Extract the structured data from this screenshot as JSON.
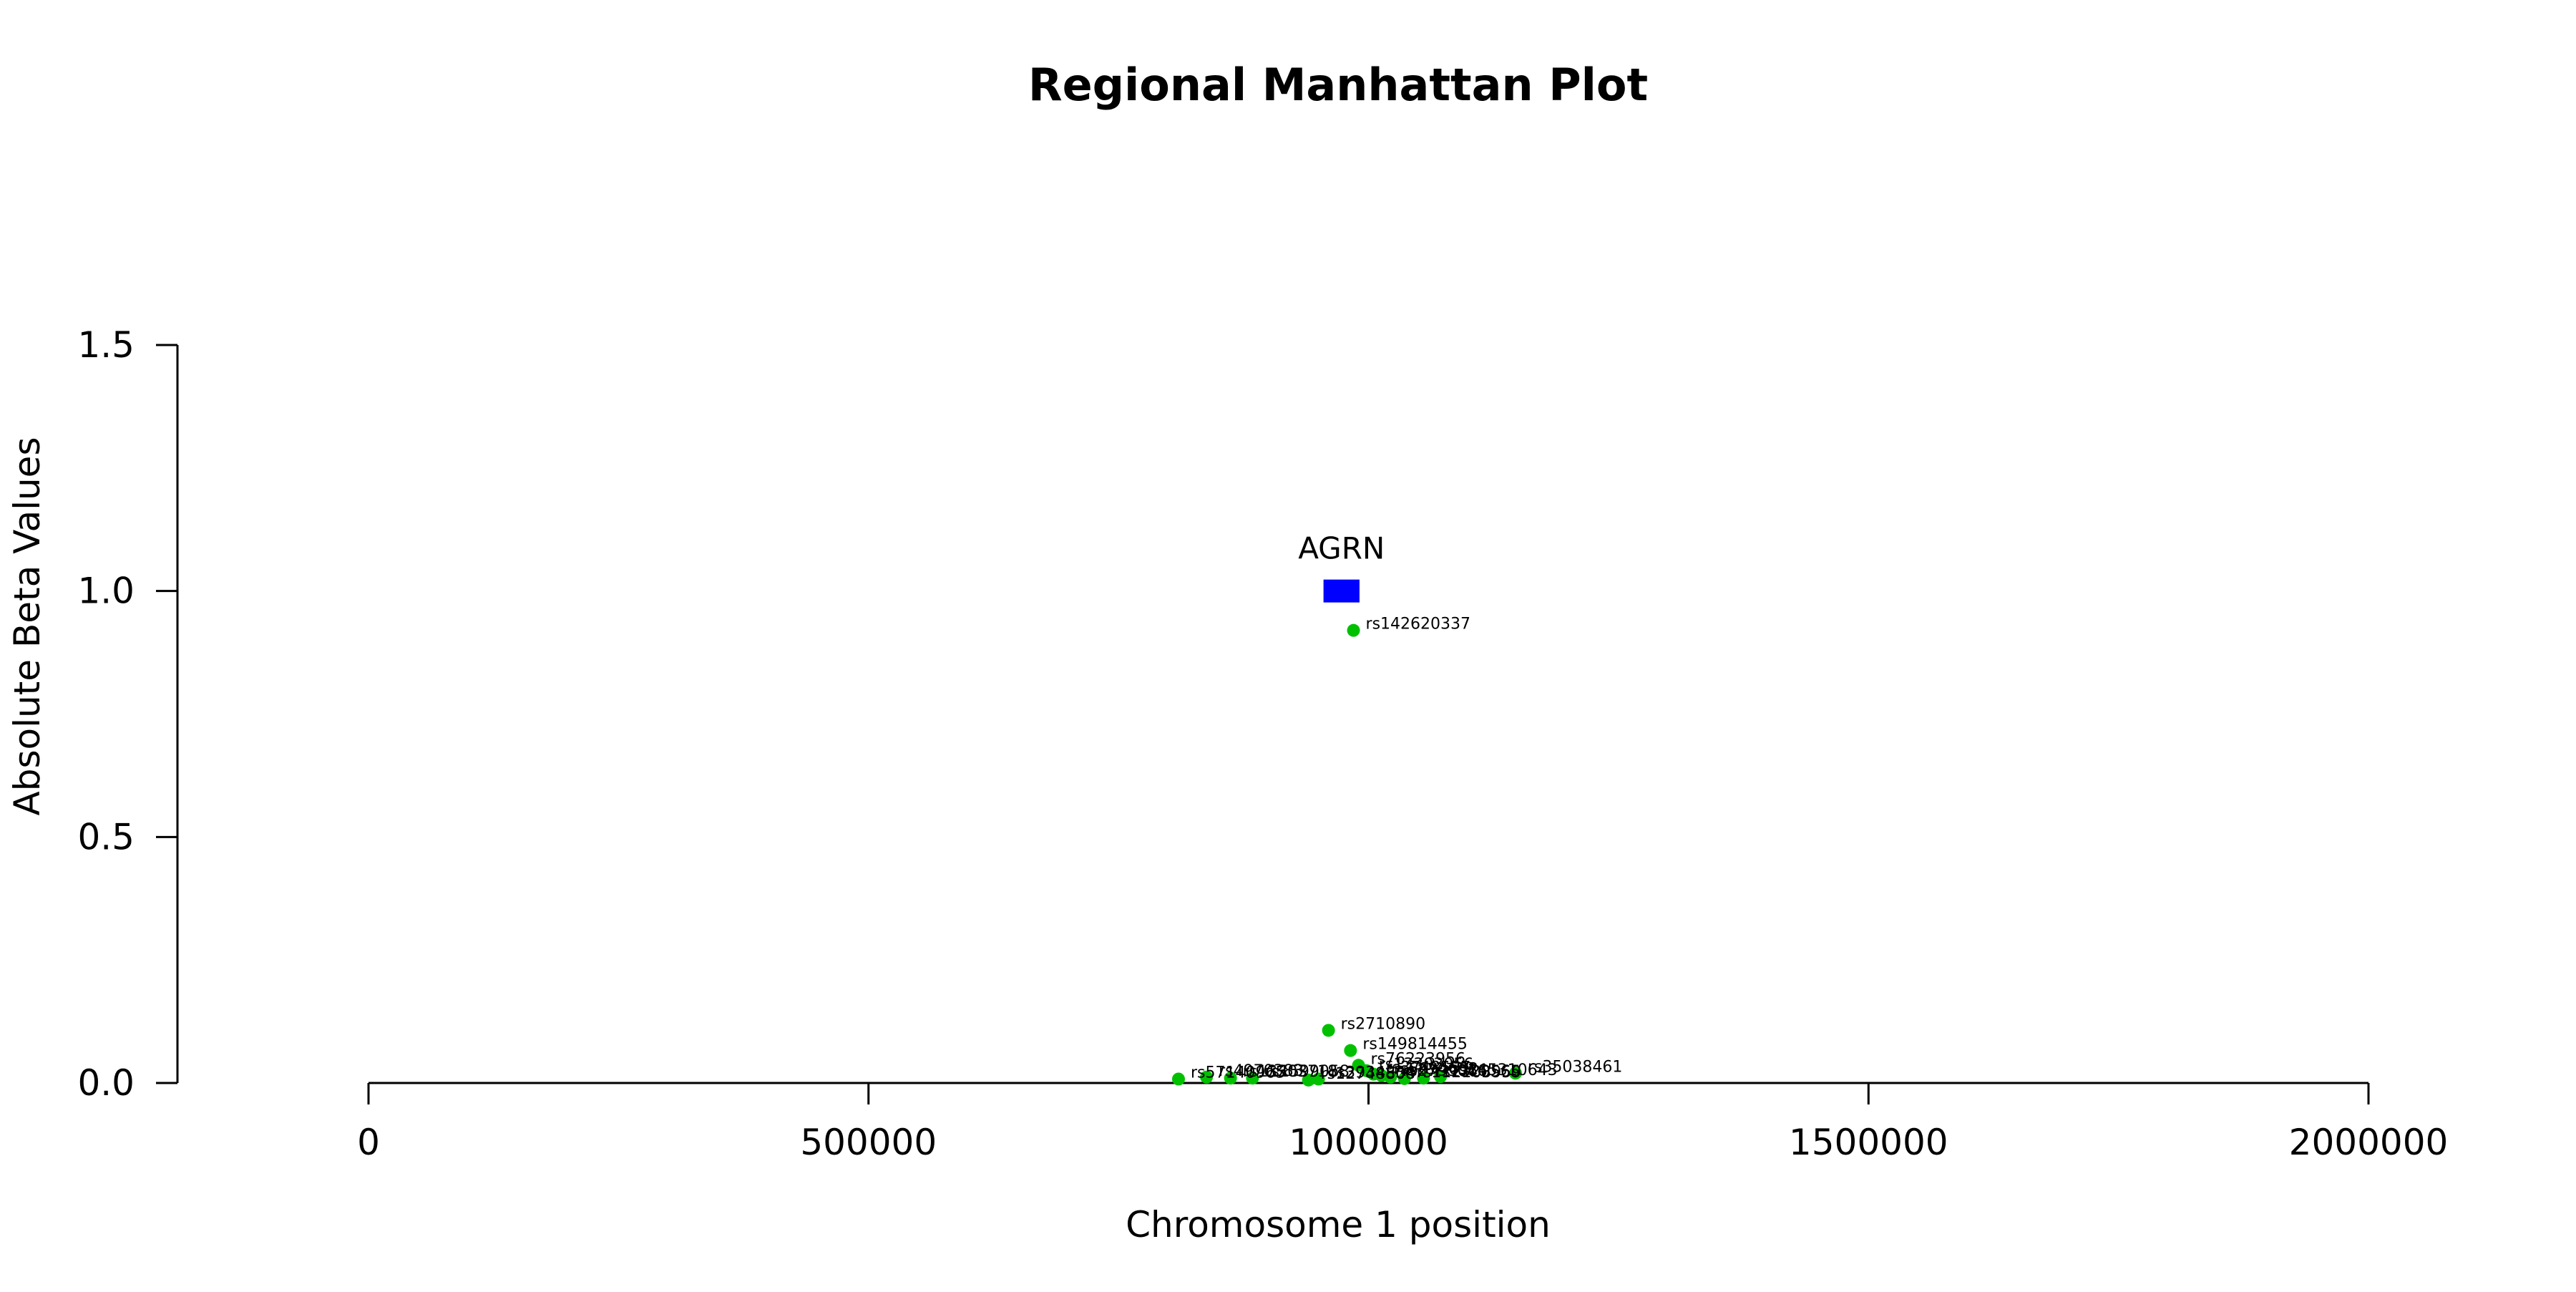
{
  "chart_data": {
    "type": "scatter",
    "title": "Regional Manhattan Plot",
    "xlabel": "Chromosome 1 position",
    "ylabel": "Absolute Beta Values",
    "xlim": [
      -190000,
      2000000
    ],
    "ylim": [
      0,
      1.5
    ],
    "x_ticks": [
      0,
      500000,
      1000000,
      1500000,
      2000000
    ],
    "x_tick_labels": [
      "0",
      "500000",
      "1000000",
      "1500000",
      "2000000"
    ],
    "y_ticks": [
      0,
      0.5,
      1.0,
      1.5
    ],
    "y_tick_labels": [
      "0.0",
      "0.5",
      "1.0",
      "1.5"
    ],
    "grid": false,
    "point_color": "#00c000",
    "gene_color": "#0000ff",
    "gene": {
      "name": "AGRN",
      "start": 955000,
      "end": 991000,
      "y": 1.0
    },
    "points": [
      {
        "label": "rs142620337",
        "x": 985000,
        "y": 0.92
      },
      {
        "label": "rs2710890",
        "x": 960000,
        "y": 0.107
      },
      {
        "label": "rs149814455",
        "x": 982000,
        "y": 0.066
      },
      {
        "label": "rs76223956",
        "x": 990000,
        "y": 0.036
      },
      {
        "label": "rs13303056",
        "x": 998000,
        "y": 0.025
      },
      {
        "label": "rs3748597",
        "x": 1005000,
        "y": 0.018
      },
      {
        "label": "rs6694632",
        "x": 1013000,
        "y": 0.015
      },
      {
        "label": "rs2799066",
        "x": 1022000,
        "y": 0.012
      },
      {
        "label": "rs112103959",
        "x": 1036000,
        "y": 0.009
      },
      {
        "label": "rs145310643",
        "x": 1072000,
        "y": 0.013
      },
      {
        "label": "rs1320565",
        "x": 1055000,
        "y": 0.01
      },
      {
        "label": "rs35038461",
        "x": 1147000,
        "y": 0.02
      },
      {
        "label": "rs57140965",
        "x": 810000,
        "y": 0.008
      },
      {
        "label": "rs4970383",
        "x": 838000,
        "y": 0.012
      },
      {
        "label": "rs13303718",
        "x": 862000,
        "y": 0.01
      },
      {
        "label": "rs1599058",
        "x": 884000,
        "y": 0.01
      },
      {
        "label": "rs12748808",
        "x": 940000,
        "y": 0.006
      },
      {
        "label": "rs3934834",
        "x": 950000,
        "y": 0.008
      }
    ]
  }
}
